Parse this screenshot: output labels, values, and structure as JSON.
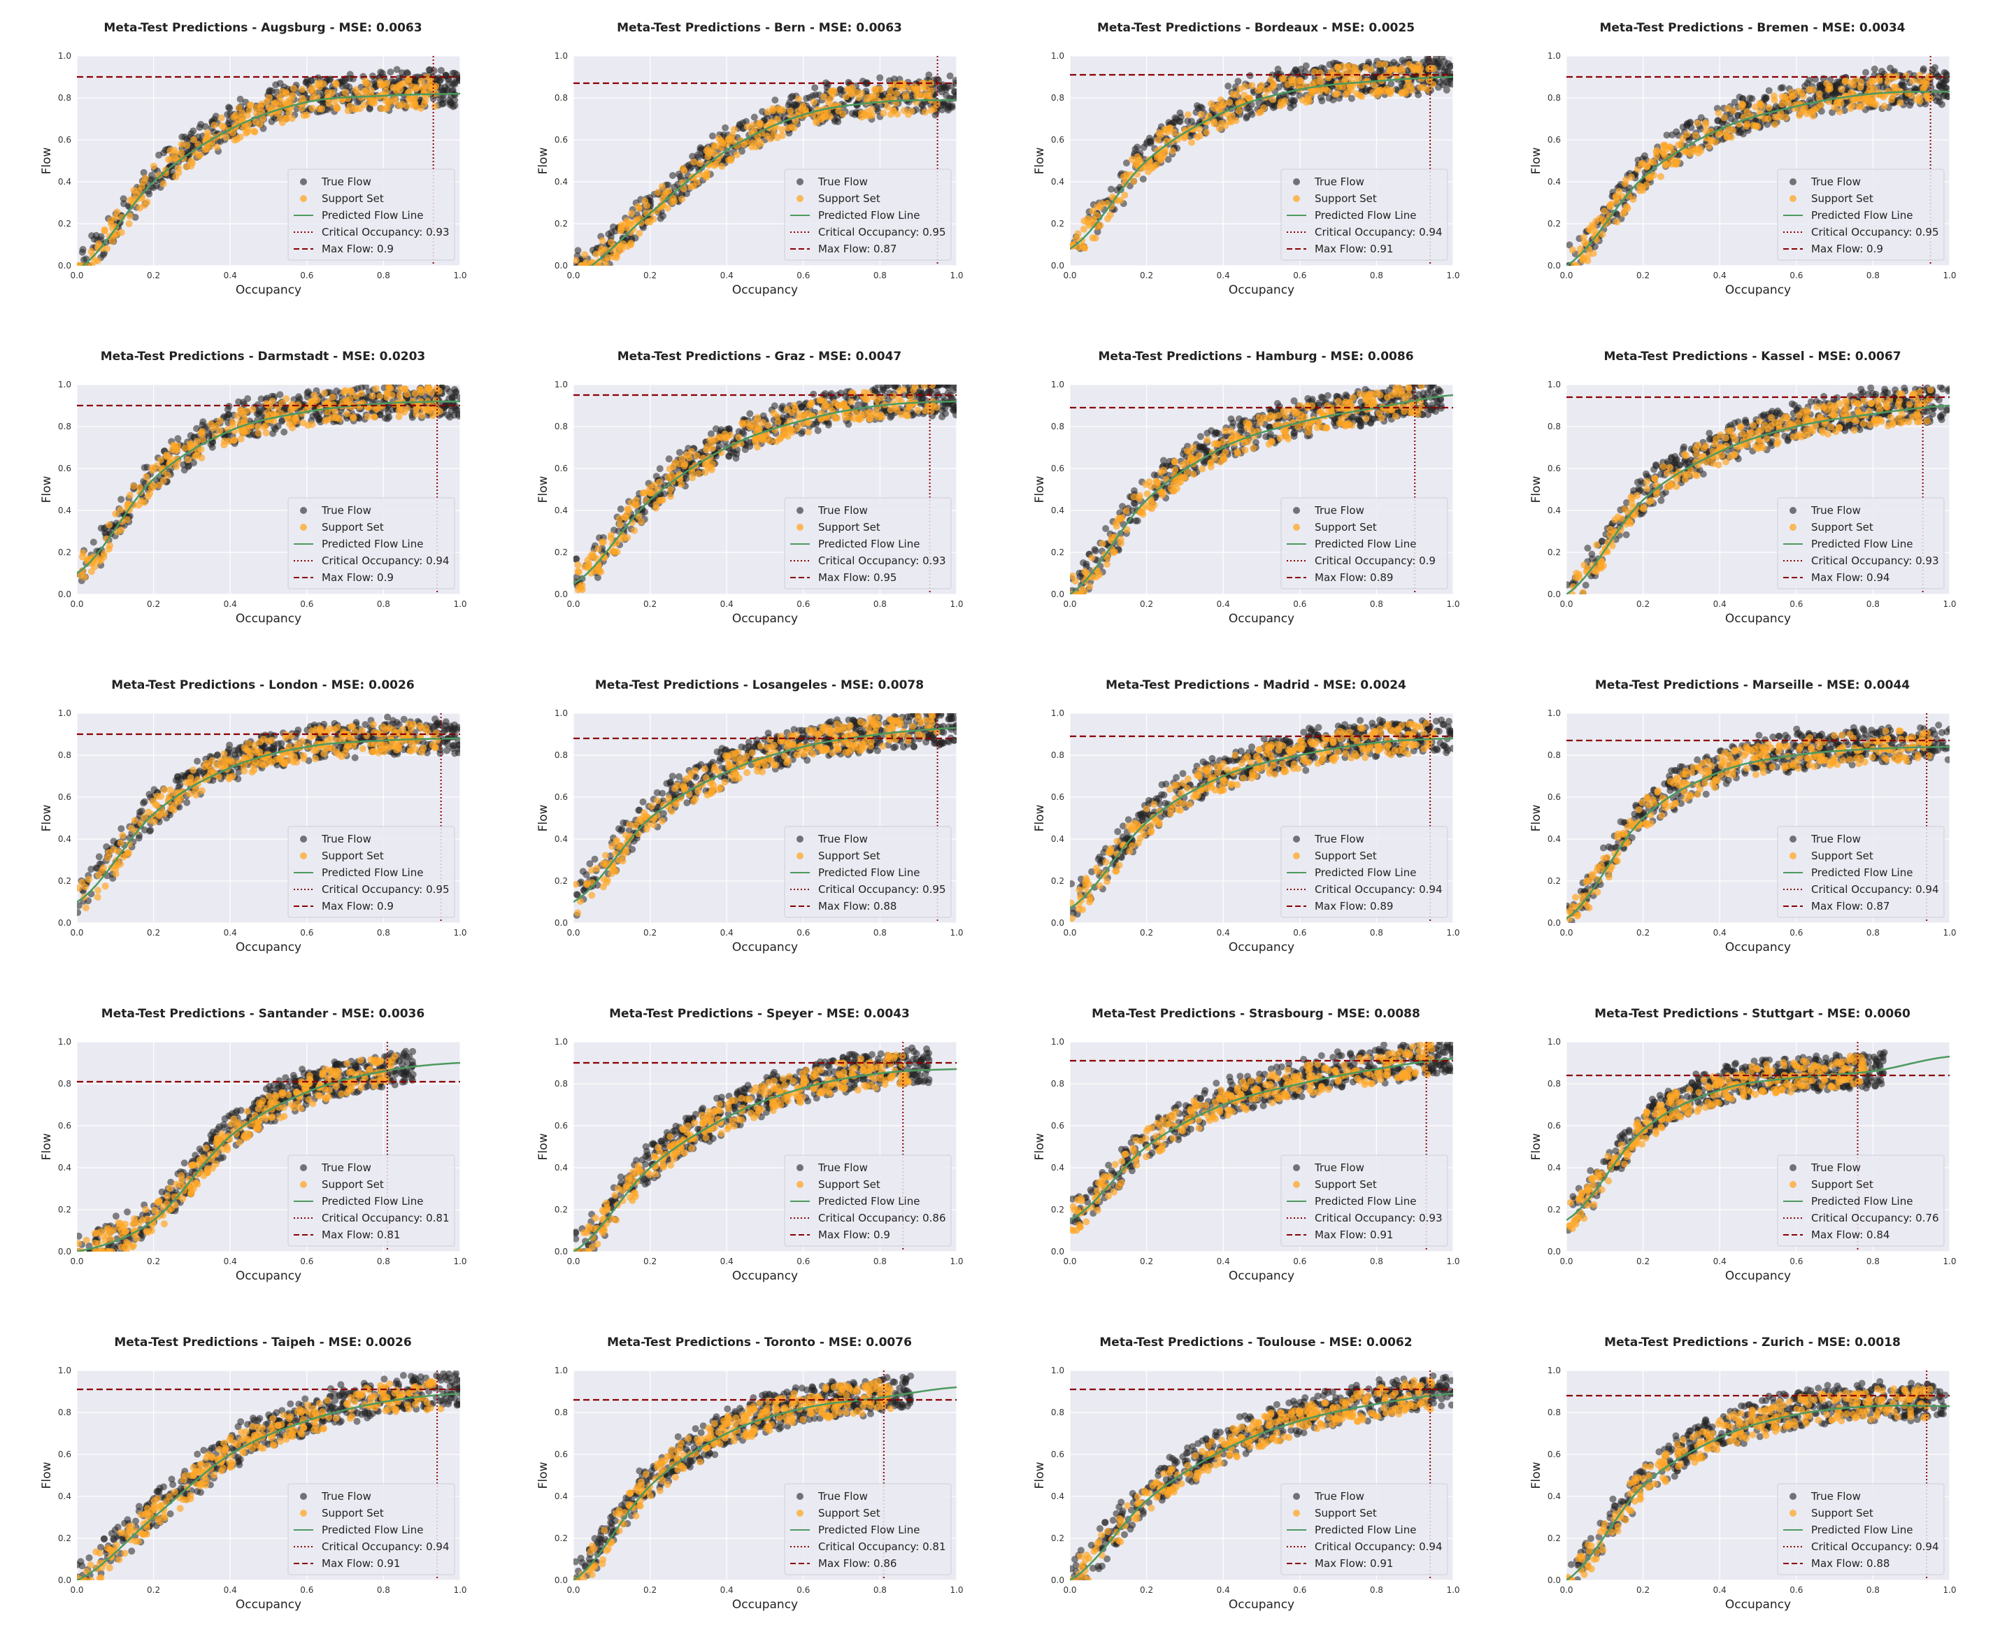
{
  "figure": {
    "shared_axes": {
      "xlabel": "Occupancy",
      "ylabel": "Flow",
      "xticks": [
        "0.0",
        "0.2",
        "0.4",
        "0.6",
        "0.8",
        "1.0"
      ],
      "yticks": [
        "0.0",
        "0.2",
        "0.4",
        "0.6",
        "0.8",
        "1.0"
      ]
    },
    "legend_labels": {
      "true_flow": "True Flow",
      "support_set": "Support Set",
      "predicted": "Predicted Flow Line",
      "critical_prefix": "Critical Occupancy: ",
      "max_prefix": "Max Flow: "
    },
    "colors": {
      "background": "#eaeaf2",
      "grid": "#ffffff",
      "true_flow": "#222222",
      "support_set": "#ffa726",
      "predicted_line": "#4c9a5e",
      "critical_line": "#8b0000",
      "max_line": "#8b0000"
    }
  },
  "chart_data": [
    {
      "type": "scatter",
      "title": "Meta-Test Predictions - Augsburg - MSE: 0.0063",
      "xlabel": "Occupancy",
      "ylabel": "Flow",
      "xlim": [
        0,
        1
      ],
      "ylim": [
        0,
        1
      ],
      "legend": "lower-right",
      "grid": true,
      "critical_occupancy": 0.93,
      "max_flow": 0.9,
      "critical_label": "0.93",
      "max_label": "0.9",
      "predicted_flow_line": {
        "x": [
          0.0,
          0.2,
          0.4,
          0.6,
          0.8,
          1.0
        ],
        "y": [
          -0.02,
          0.4,
          0.65,
          0.78,
          0.81,
          0.82
        ]
      }
    },
    {
      "type": "scatter",
      "title": "Meta-Test Predictions - Bern - MSE: 0.0063",
      "xlabel": "Occupancy",
      "ylabel": "Flow",
      "xlim": [
        0,
        1
      ],
      "ylim": [
        0,
        1
      ],
      "legend": "lower-right",
      "grid": true,
      "critical_occupancy": 0.95,
      "max_flow": 0.87,
      "critical_label": "0.95",
      "max_label": "0.87",
      "predicted_flow_line": {
        "x": [
          0.0,
          0.2,
          0.4,
          0.6,
          0.8,
          1.0
        ],
        "y": [
          -0.05,
          0.25,
          0.55,
          0.72,
          0.78,
          0.79
        ]
      }
    },
    {
      "type": "scatter",
      "title": "Meta-Test Predictions - Bordeaux - MSE: 0.0025",
      "xlabel": "Occupancy",
      "ylabel": "Flow",
      "xlim": [
        0,
        1
      ],
      "ylim": [
        0,
        1
      ],
      "legend": "lower-right",
      "grid": true,
      "critical_occupancy": 0.94,
      "max_flow": 0.91,
      "critical_label": "0.94",
      "max_label": "0.91",
      "predicted_flow_line": {
        "x": [
          0.0,
          0.2,
          0.4,
          0.6,
          0.8,
          1.0
        ],
        "y": [
          0.08,
          0.5,
          0.73,
          0.84,
          0.88,
          0.9
        ]
      }
    },
    {
      "type": "scatter",
      "title": "Meta-Test Predictions - Bremen - MSE: 0.0034",
      "xlabel": "Occupancy",
      "ylabel": "Flow",
      "xlim": [
        0,
        1
      ],
      "ylim": [
        0,
        1
      ],
      "legend": "lower-right",
      "grid": true,
      "critical_occupancy": 0.95,
      "max_flow": 0.9,
      "critical_label": "0.95",
      "max_label": "0.9",
      "predicted_flow_line": {
        "x": [
          0.0,
          0.2,
          0.4,
          0.6,
          0.8,
          1.0
        ],
        "y": [
          0.0,
          0.42,
          0.65,
          0.76,
          0.82,
          0.83
        ]
      }
    },
    {
      "type": "scatter",
      "title": "Meta-Test Predictions - Darmstadt - MSE: 0.0203",
      "xlabel": "Occupancy",
      "ylabel": "Flow",
      "xlim": [
        0,
        1
      ],
      "ylim": [
        0,
        1
      ],
      "legend": "lower-right",
      "grid": true,
      "critical_occupancy": 0.94,
      "max_flow": 0.9,
      "critical_label": "0.94",
      "max_label": "0.9",
      "predicted_flow_line": {
        "x": [
          0.0,
          0.2,
          0.4,
          0.6,
          0.8,
          1.0
        ],
        "y": [
          0.1,
          0.55,
          0.78,
          0.87,
          0.91,
          0.92
        ]
      }
    },
    {
      "type": "scatter",
      "title": "Meta-Test Predictions - Graz - MSE: 0.0047",
      "xlabel": "Occupancy",
      "ylabel": "Flow",
      "xlim": [
        0,
        1
      ],
      "ylim": [
        0,
        1
      ],
      "legend": "lower-right",
      "grid": true,
      "critical_occupancy": 0.93,
      "max_flow": 0.95,
      "critical_label": "0.93",
      "max_label": "0.95",
      "predicted_flow_line": {
        "x": [
          0.0,
          0.2,
          0.4,
          0.6,
          0.8,
          1.0
        ],
        "y": [
          0.05,
          0.45,
          0.7,
          0.83,
          0.9,
          0.92
        ]
      }
    },
    {
      "type": "scatter",
      "title": "Meta-Test Predictions - Hamburg - MSE: 0.0086",
      "xlabel": "Occupancy",
      "ylabel": "Flow",
      "xlim": [
        0,
        1
      ],
      "ylim": [
        0,
        1
      ],
      "legend": "lower-right",
      "grid": true,
      "critical_occupancy": 0.9,
      "max_flow": 0.89,
      "critical_label": "0.9",
      "max_label": "0.89",
      "predicted_flow_line": {
        "x": [
          0.0,
          0.2,
          0.4,
          0.6,
          0.8,
          1.0
        ],
        "y": [
          0.0,
          0.45,
          0.7,
          0.82,
          0.89,
          0.95
        ]
      }
    },
    {
      "type": "scatter",
      "title": "Meta-Test Predictions - Kassel - MSE: 0.0067",
      "xlabel": "Occupancy",
      "ylabel": "Flow",
      "xlim": [
        0,
        1
      ],
      "ylim": [
        0,
        1
      ],
      "legend": "lower-right",
      "grid": true,
      "critical_occupancy": 0.93,
      "max_flow": 0.94,
      "critical_label": "0.93",
      "max_label": "0.94",
      "predicted_flow_line": {
        "x": [
          0.0,
          0.2,
          0.4,
          0.6,
          0.8,
          1.0
        ],
        "y": [
          0.0,
          0.45,
          0.68,
          0.8,
          0.86,
          0.9
        ]
      }
    },
    {
      "type": "scatter",
      "title": "Meta-Test Predictions - London - MSE: 0.0026",
      "xlabel": "Occupancy",
      "ylabel": "Flow",
      "xlim": [
        0,
        1
      ],
      "ylim": [
        0,
        1
      ],
      "legend": "lower-right",
      "grid": true,
      "critical_occupancy": 0.95,
      "max_flow": 0.9,
      "critical_label": "0.95",
      "max_label": "0.9",
      "predicted_flow_line": {
        "x": [
          0.0,
          0.2,
          0.4,
          0.6,
          0.8,
          1.0
        ],
        "y": [
          0.1,
          0.52,
          0.74,
          0.84,
          0.87,
          0.88
        ]
      }
    },
    {
      "type": "scatter",
      "title": "Meta-Test Predictions - Losangeles - MSE: 0.0078",
      "xlabel": "Occupancy",
      "ylabel": "Flow",
      "xlim": [
        0,
        1
      ],
      "ylim": [
        0,
        1
      ],
      "legend": "lower-right",
      "grid": true,
      "critical_occupancy": 0.95,
      "max_flow": 0.88,
      "critical_label": "0.95",
      "max_label": "0.88",
      "predicted_flow_line": {
        "x": [
          0.0,
          0.2,
          0.4,
          0.6,
          0.8,
          1.0
        ],
        "y": [
          0.1,
          0.5,
          0.72,
          0.84,
          0.9,
          0.93
        ]
      }
    },
    {
      "type": "scatter",
      "title": "Meta-Test Predictions - Madrid - MSE: 0.0024",
      "xlabel": "Occupancy",
      "ylabel": "Flow",
      "xlim": [
        0,
        1
      ],
      "ylim": [
        0,
        1
      ],
      "legend": "lower-right",
      "grid": true,
      "critical_occupancy": 0.94,
      "max_flow": 0.89,
      "critical_label": "0.94",
      "max_label": "0.89",
      "predicted_flow_line": {
        "x": [
          0.0,
          0.2,
          0.4,
          0.6,
          0.8,
          1.0
        ],
        "y": [
          0.07,
          0.48,
          0.7,
          0.8,
          0.86,
          0.88
        ]
      }
    },
    {
      "type": "scatter",
      "title": "Meta-Test Predictions - Marseille - MSE: 0.0044",
      "xlabel": "Occupancy",
      "ylabel": "Flow",
      "xlim": [
        0,
        1
      ],
      "ylim": [
        0,
        1
      ],
      "legend": "lower-right",
      "grid": true,
      "critical_occupancy": 0.94,
      "max_flow": 0.87,
      "critical_label": "0.94",
      "max_label": "0.87",
      "predicted_flow_line": {
        "x": [
          0.0,
          0.2,
          0.4,
          0.6,
          0.8,
          1.0
        ],
        "y": [
          0.02,
          0.5,
          0.72,
          0.8,
          0.83,
          0.84
        ]
      }
    },
    {
      "type": "scatter",
      "title": "Meta-Test Predictions - Santander - MSE: 0.0036",
      "xlabel": "Occupancy",
      "ylabel": "Flow",
      "xlim": [
        0,
        1
      ],
      "ylim": [
        0,
        1
      ],
      "legend": "lower-right",
      "grid": true,
      "critical_occupancy": 0.81,
      "max_flow": 0.81,
      "critical_label": "0.81",
      "max_label": "0.81",
      "predicted_flow_line": {
        "x": [
          0.0,
          0.2,
          0.4,
          0.6,
          0.8,
          1.0
        ],
        "y": [
          0.0,
          0.15,
          0.55,
          0.76,
          0.86,
          0.9
        ]
      }
    },
    {
      "type": "scatter",
      "title": "Meta-Test Predictions - Speyer - MSE: 0.0043",
      "xlabel": "Occupancy",
      "ylabel": "Flow",
      "xlim": [
        0,
        1
      ],
      "ylim": [
        0,
        1
      ],
      "legend": "lower-right",
      "grid": true,
      "critical_occupancy": 0.86,
      "max_flow": 0.9,
      "critical_label": "0.86",
      "max_label": "0.9",
      "predicted_flow_line": {
        "x": [
          0.0,
          0.2,
          0.4,
          0.6,
          0.8,
          1.0
        ],
        "y": [
          0.0,
          0.4,
          0.64,
          0.78,
          0.85,
          0.87
        ]
      }
    },
    {
      "type": "scatter",
      "title": "Meta-Test Predictions - Strasbourg - MSE: 0.0088",
      "xlabel": "Occupancy",
      "ylabel": "Flow",
      "xlim": [
        0,
        1
      ],
      "ylim": [
        0,
        1
      ],
      "legend": "lower-right",
      "grid": true,
      "critical_occupancy": 0.93,
      "max_flow": 0.91,
      "critical_label": "0.93",
      "max_label": "0.91",
      "predicted_flow_line": {
        "x": [
          0.0,
          0.2,
          0.4,
          0.6,
          0.8,
          1.0
        ],
        "y": [
          0.15,
          0.5,
          0.7,
          0.8,
          0.87,
          0.92
        ]
      }
    },
    {
      "type": "scatter",
      "title": "Meta-Test Predictions - Stuttgart - MSE: 0.0060",
      "xlabel": "Occupancy",
      "ylabel": "Flow",
      "xlim": [
        0,
        1
      ],
      "ylim": [
        0,
        1
      ],
      "legend": "lower-right",
      "grid": true,
      "critical_occupancy": 0.76,
      "max_flow": 0.84,
      "critical_label": "0.76",
      "max_label": "0.84",
      "predicted_flow_line": {
        "x": [
          0.0,
          0.2,
          0.4,
          0.6,
          0.8,
          1.0
        ],
        "y": [
          0.15,
          0.58,
          0.77,
          0.83,
          0.86,
          0.93
        ]
      }
    },
    {
      "type": "scatter",
      "title": "Meta-Test Predictions - Taipeh - MSE: 0.0026",
      "xlabel": "Occupancy",
      "ylabel": "Flow",
      "xlim": [
        0,
        1
      ],
      "ylim": [
        0,
        1
      ],
      "legend": "lower-right",
      "grid": true,
      "critical_occupancy": 0.94,
      "max_flow": 0.91,
      "critical_label": "0.94",
      "max_label": "0.91",
      "predicted_flow_line": {
        "x": [
          0.0,
          0.2,
          0.4,
          0.6,
          0.8,
          1.0
        ],
        "y": [
          0.0,
          0.3,
          0.6,
          0.76,
          0.85,
          0.89
        ]
      }
    },
    {
      "type": "scatter",
      "title": "Meta-Test Predictions - Toronto - MSE: 0.0076",
      "xlabel": "Occupancy",
      "ylabel": "Flow",
      "xlim": [
        0,
        1
      ],
      "ylim": [
        0,
        1
      ],
      "legend": "lower-right",
      "grid": true,
      "critical_occupancy": 0.81,
      "max_flow": 0.86,
      "critical_label": "0.81",
      "max_label": "0.86",
      "predicted_flow_line": {
        "x": [
          0.0,
          0.2,
          0.4,
          0.6,
          0.8,
          1.0
        ],
        "y": [
          0.0,
          0.45,
          0.7,
          0.82,
          0.87,
          0.92
        ]
      }
    },
    {
      "type": "scatter",
      "title": "Meta-Test Predictions - Toulouse - MSE: 0.0062",
      "xlabel": "Occupancy",
      "ylabel": "Flow",
      "xlim": [
        0,
        1
      ],
      "ylim": [
        0,
        1
      ],
      "legend": "lower-right",
      "grid": true,
      "critical_occupancy": 0.94,
      "max_flow": 0.91,
      "critical_label": "0.94",
      "max_label": "0.91",
      "predicted_flow_line": {
        "x": [
          0.0,
          0.2,
          0.4,
          0.6,
          0.8,
          1.0
        ],
        "y": [
          0.0,
          0.38,
          0.62,
          0.76,
          0.84,
          0.89
        ]
      }
    },
    {
      "type": "scatter",
      "title": "Meta-Test Predictions - Zurich - MSE: 0.0018",
      "xlabel": "Occupancy",
      "ylabel": "Flow",
      "xlim": [
        0,
        1
      ],
      "ylim": [
        0,
        1
      ],
      "legend": "lower-right",
      "grid": true,
      "critical_occupancy": 0.94,
      "max_flow": 0.88,
      "critical_label": "0.94",
      "max_label": "0.88",
      "predicted_flow_line": {
        "x": [
          0.0,
          0.2,
          0.4,
          0.6,
          0.8,
          1.0
        ],
        "y": [
          0.0,
          0.45,
          0.68,
          0.79,
          0.83,
          0.83
        ]
      }
    }
  ]
}
